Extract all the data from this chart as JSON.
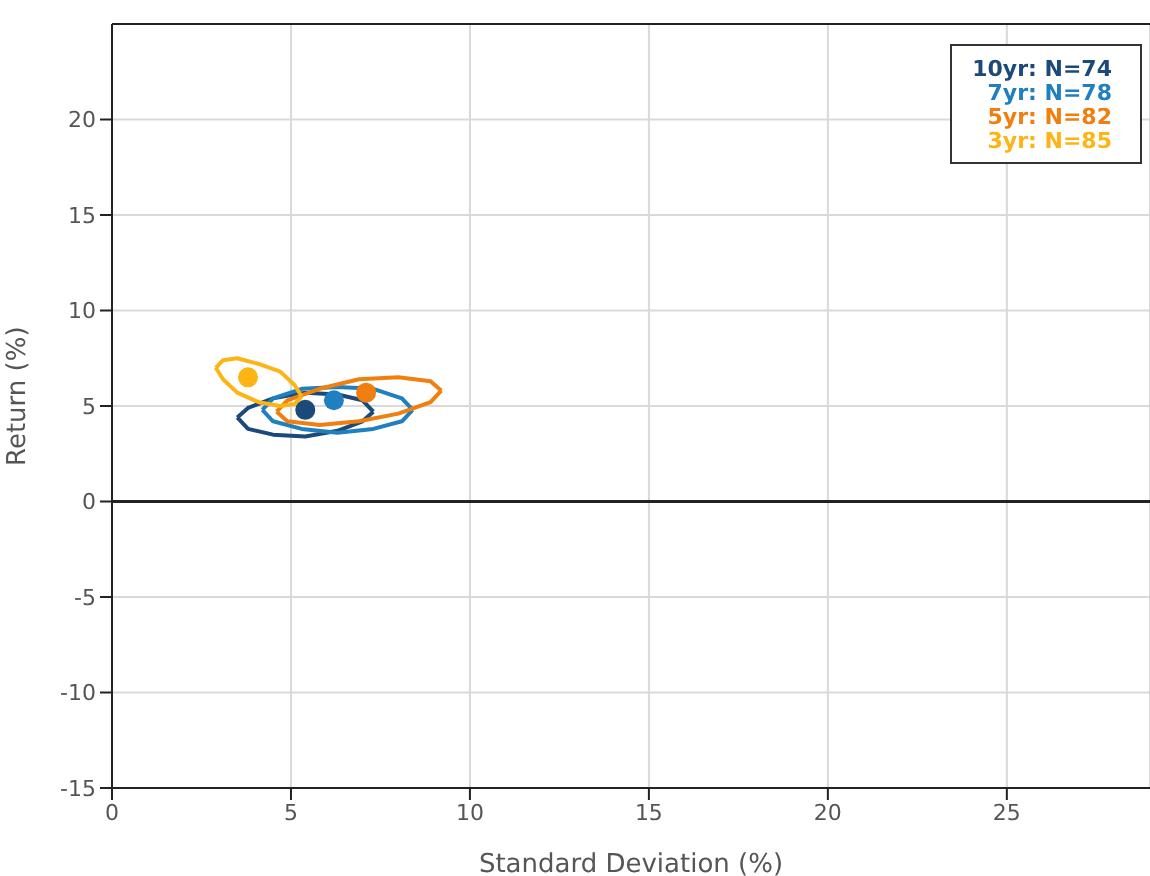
{
  "chart_data": {
    "type": "scatter",
    "xlabel": "Standard Deviation (%)",
    "ylabel": "Return (%)",
    "xlim": [
      0,
      29
    ],
    "xticks": [
      0,
      5,
      10,
      15,
      20,
      25
    ],
    "ylim": [
      -15,
      25
    ],
    "yticks": [
      -15,
      -10,
      -5,
      0,
      5,
      10,
      15,
      20
    ],
    "grid": true,
    "marker": "circle",
    "ref_lines": [
      {
        "axis": "y",
        "value": 0,
        "color": "#222222"
      }
    ],
    "series": [
      {
        "name": "10yr: N=74",
        "type": "line",
        "marker": "none",
        "color": "#1b4a7a",
        "x": [
          3.5,
          3.8,
          4.5,
          5.4,
          6.3,
          7.0,
          7.3
        ],
        "values": [
          4.4,
          4.9,
          5.4,
          5.7,
          5.6,
          5.3,
          4.7
        ]
      },
      {
        "type": "line",
        "marker": "none",
        "color": "#1b4a7a",
        "x": [
          3.5,
          3.8,
          4.5,
          5.4,
          6.3,
          7.0,
          7.3
        ],
        "values": [
          4.4,
          3.8,
          3.5,
          3.4,
          3.7,
          4.2,
          4.7
        ]
      },
      {
        "name": "7yr: N=78",
        "type": "line",
        "marker": "none",
        "color": "#1f7fbf",
        "x": [
          4.2,
          4.5,
          5.3,
          6.3,
          7.3,
          8.1,
          8.4
        ],
        "values": [
          4.8,
          5.4,
          5.9,
          6.0,
          5.9,
          5.4,
          4.8
        ]
      },
      {
        "type": "line",
        "marker": "none",
        "color": "#1f7fbf",
        "x": [
          4.2,
          4.5,
          5.3,
          6.3,
          7.3,
          8.1,
          8.4
        ],
        "values": [
          4.8,
          4.2,
          3.8,
          3.6,
          3.8,
          4.2,
          4.8
        ]
      },
      {
        "name": "5yr: N=82",
        "type": "line",
        "marker": "none",
        "color": "#f07f10",
        "x": [
          4.6,
          4.9,
          5.8,
          6.9,
          8.0,
          8.9,
          9.2
        ],
        "values": [
          4.7,
          5.3,
          5.9,
          6.4,
          6.5,
          6.3,
          5.8
        ]
      },
      {
        "type": "line",
        "marker": "none",
        "color": "#f07f10",
        "x": [
          4.6,
          4.9,
          5.8,
          6.9,
          8.0,
          8.9,
          9.2
        ],
        "values": [
          4.7,
          4.2,
          4.0,
          4.2,
          4.6,
          5.2,
          5.8
        ]
      },
      {
        "name": "3yr: N=85",
        "type": "line",
        "marker": "none",
        "color": "#fdb515",
        "x": [
          2.9,
          3.1,
          3.5,
          4.1,
          4.7,
          5.1,
          5.3
        ],
        "values": [
          7.0,
          7.4,
          7.5,
          7.2,
          6.8,
          6.1,
          5.5
        ]
      },
      {
        "type": "line",
        "marker": "none",
        "color": "#fdb515",
        "x": [
          2.9,
          3.1,
          3.5,
          4.1,
          4.7,
          5.1,
          5.3
        ],
        "values": [
          7.0,
          6.4,
          5.7,
          5.2,
          5.0,
          5.1,
          5.5
        ]
      },
      {
        "color": "#1b4a7a",
        "x": [
          5.4
        ],
        "values": [
          4.8
        ]
      },
      {
        "color": "#1f7fbf",
        "x": [
          6.2
        ],
        "values": [
          5.3
        ]
      },
      {
        "color": "#f07f10",
        "x": [
          7.1
        ],
        "values": [
          5.7
        ]
      },
      {
        "color": "#fdb515",
        "x": [
          3.8
        ],
        "values": [
          6.5
        ]
      }
    ]
  }
}
